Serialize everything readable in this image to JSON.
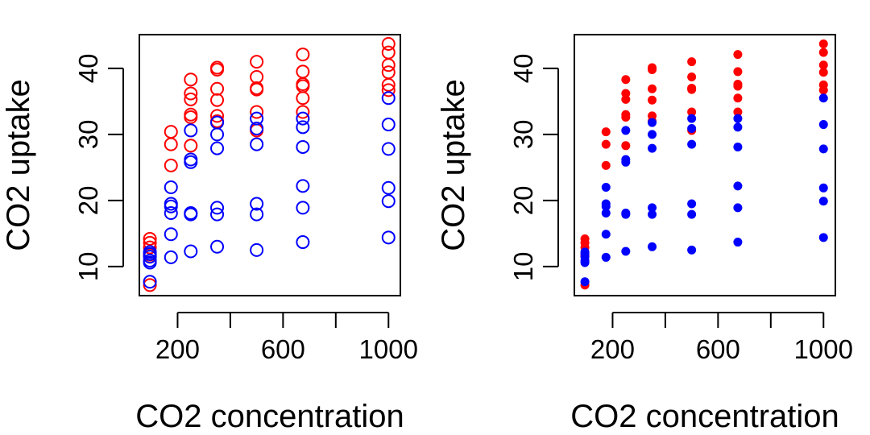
{
  "chart_data": [
    {
      "type": "scatter",
      "marker": "open-circle",
      "xlabel": "CO2 concentration",
      "ylabel": "CO2 uptake",
      "xlim": [
        55,
        1045
      ],
      "ylim": [
        5.6,
        45.1
      ],
      "x_ticks": [
        200,
        400,
        600,
        800,
        1000
      ],
      "x_tick_labels": [
        "200",
        "",
        "600",
        "",
        "1000"
      ],
      "y_ticks": [
        10,
        20,
        30,
        40
      ],
      "y_tick_labels": [
        "10",
        "20",
        "30",
        "40"
      ],
      "grid": false,
      "series": [
        {
          "color": "#ff0000",
          "points": [
            [
              95,
              14.2
            ],
            [
              95,
              13.6
            ],
            [
              95,
              12.9
            ],
            [
              95,
              11.8
            ],
            [
              95,
              11.5
            ],
            [
              95,
              7.2
            ],
            [
              175,
              30.4
            ],
            [
              175,
              28.5
            ],
            [
              175,
              25.3
            ],
            [
              250,
              38.3
            ],
            [
              250,
              36.2
            ],
            [
              250,
              35.3
            ],
            [
              250,
              33.0
            ],
            [
              250,
              32.6
            ],
            [
              250,
              28.3
            ],
            [
              350,
              40.1
            ],
            [
              350,
              39.8
            ],
            [
              350,
              36.9
            ],
            [
              350,
              35.2
            ],
            [
              350,
              32.8
            ],
            [
              350,
              32.0
            ],
            [
              500,
              41.0
            ],
            [
              500,
              38.7
            ],
            [
              500,
              37.0
            ],
            [
              500,
              36.8
            ],
            [
              500,
              33.4
            ],
            [
              500,
              30.6
            ],
            [
              675,
              42.1
            ],
            [
              675,
              39.5
            ],
            [
              675,
              37.6
            ],
            [
              675,
              37.3
            ],
            [
              675,
              35.5
            ],
            [
              675,
              33.4
            ],
            [
              1000,
              43.7
            ],
            [
              1000,
              42.4
            ],
            [
              1000,
              40.5
            ],
            [
              1000,
              39.4
            ],
            [
              1000,
              37.5
            ],
            [
              1000,
              36.7
            ]
          ]
        },
        {
          "color": "#0000ff",
          "points": [
            [
              95,
              12.2
            ],
            [
              95,
              11.9
            ],
            [
              95,
              11.5
            ],
            [
              95,
              10.9
            ],
            [
              95,
              10.6
            ],
            [
              95,
              7.7
            ],
            [
              175,
              22.0
            ],
            [
              175,
              19.5
            ],
            [
              175,
              19.1
            ],
            [
              175,
              18.1
            ],
            [
              175,
              14.9
            ],
            [
              175,
              11.4
            ],
            [
              250,
              30.6
            ],
            [
              250,
              26.2
            ],
            [
              250,
              25.8
            ],
            [
              250,
              18.1
            ],
            [
              250,
              17.9
            ],
            [
              250,
              12.3
            ],
            [
              350,
              31.8
            ],
            [
              350,
              30.0
            ],
            [
              350,
              27.9
            ],
            [
              350,
              18.9
            ],
            [
              350,
              17.9
            ],
            [
              350,
              13.0
            ],
            [
              500,
              32.4
            ],
            [
              500,
              30.9
            ],
            [
              500,
              28.5
            ],
            [
              500,
              19.5
            ],
            [
              500,
              17.9
            ],
            [
              500,
              12.5
            ],
            [
              675,
              32.4
            ],
            [
              675,
              31.1
            ],
            [
              675,
              28.1
            ],
            [
              675,
              22.2
            ],
            [
              675,
              18.9
            ],
            [
              675,
              13.7
            ],
            [
              1000,
              35.5
            ],
            [
              1000,
              31.5
            ],
            [
              1000,
              27.8
            ],
            [
              1000,
              21.9
            ],
            [
              1000,
              19.9
            ],
            [
              1000,
              14.4
            ]
          ]
        }
      ]
    },
    {
      "type": "scatter",
      "marker": "filled-dot",
      "xlabel": "CO2 concentration",
      "ylabel": "CO2 uptake",
      "xlim": [
        55,
        1045
      ],
      "ylim": [
        5.6,
        45.1
      ],
      "x_ticks": [
        200,
        400,
        600,
        800,
        1000
      ],
      "x_tick_labels": [
        "200",
        "",
        "600",
        "",
        "1000"
      ],
      "y_ticks": [
        10,
        20,
        30,
        40
      ],
      "y_tick_labels": [
        "10",
        "20",
        "30",
        "40"
      ],
      "grid": false,
      "series": [
        {
          "color": "#ff0000",
          "points": [
            [
              95,
              14.2
            ],
            [
              95,
              13.6
            ],
            [
              95,
              12.9
            ],
            [
              95,
              11.8
            ],
            [
              95,
              11.5
            ],
            [
              95,
              7.2
            ],
            [
              175,
              30.4
            ],
            [
              175,
              28.5
            ],
            [
              175,
              25.3
            ],
            [
              250,
              38.3
            ],
            [
              250,
              36.2
            ],
            [
              250,
              35.3
            ],
            [
              250,
              33.0
            ],
            [
              250,
              32.6
            ],
            [
              250,
              28.3
            ],
            [
              350,
              40.1
            ],
            [
              350,
              39.8
            ],
            [
              350,
              36.9
            ],
            [
              350,
              35.2
            ],
            [
              350,
              32.8
            ],
            [
              350,
              32.0
            ],
            [
              500,
              41.0
            ],
            [
              500,
              38.7
            ],
            [
              500,
              37.0
            ],
            [
              500,
              36.8
            ],
            [
              500,
              33.4
            ],
            [
              500,
              30.6
            ],
            [
              675,
              42.1
            ],
            [
              675,
              39.5
            ],
            [
              675,
              37.6
            ],
            [
              675,
              37.3
            ],
            [
              675,
              35.5
            ],
            [
              675,
              33.4
            ],
            [
              1000,
              43.7
            ],
            [
              1000,
              42.4
            ],
            [
              1000,
              40.5
            ],
            [
              1000,
              39.4
            ],
            [
              1000,
              37.5
            ],
            [
              1000,
              36.7
            ]
          ]
        },
        {
          "color": "#0000ff",
          "points": [
            [
              95,
              12.2
            ],
            [
              95,
              11.9
            ],
            [
              95,
              11.5
            ],
            [
              95,
              10.9
            ],
            [
              95,
              10.6
            ],
            [
              95,
              7.7
            ],
            [
              175,
              22.0
            ],
            [
              175,
              19.5
            ],
            [
              175,
              19.1
            ],
            [
              175,
              18.1
            ],
            [
              175,
              14.9
            ],
            [
              175,
              11.4
            ],
            [
              250,
              30.6
            ],
            [
              250,
              26.2
            ],
            [
              250,
              25.8
            ],
            [
              250,
              18.1
            ],
            [
              250,
              17.9
            ],
            [
              250,
              12.3
            ],
            [
              350,
              31.8
            ],
            [
              350,
              30.0
            ],
            [
              350,
              27.9
            ],
            [
              350,
              18.9
            ],
            [
              350,
              17.9
            ],
            [
              350,
              13.0
            ],
            [
              500,
              32.4
            ],
            [
              500,
              30.9
            ],
            [
              500,
              28.5
            ],
            [
              500,
              19.5
            ],
            [
              500,
              17.9
            ],
            [
              500,
              12.5
            ],
            [
              675,
              32.4
            ],
            [
              675,
              31.1
            ],
            [
              675,
              28.1
            ],
            [
              675,
              22.2
            ],
            [
              675,
              18.9
            ],
            [
              675,
              13.7
            ],
            [
              1000,
              35.5
            ],
            [
              1000,
              31.5
            ],
            [
              1000,
              27.8
            ],
            [
              1000,
              21.9
            ],
            [
              1000,
              19.9
            ],
            [
              1000,
              14.4
            ]
          ]
        }
      ]
    }
  ]
}
